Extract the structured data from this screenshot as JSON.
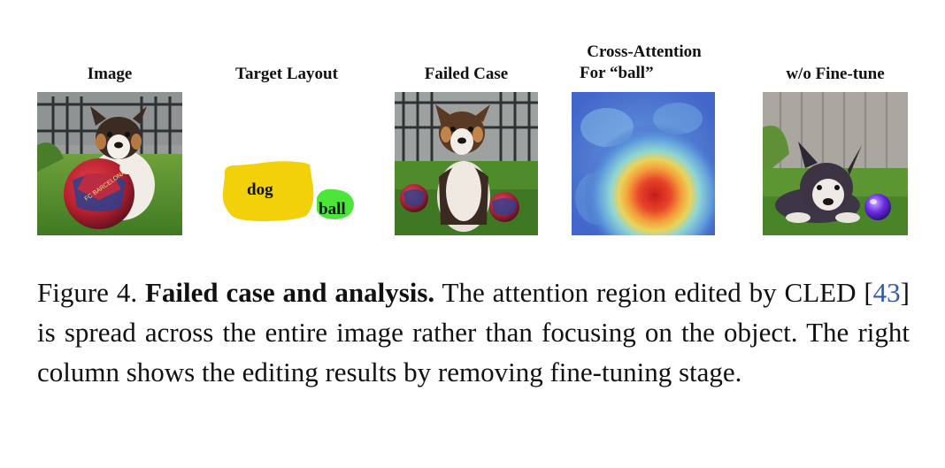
{
  "figure": {
    "panels": [
      {
        "title": "Image"
      },
      {
        "title": "Target Layout",
        "labels": [
          "dog",
          "ball"
        ]
      },
      {
        "title": "Failed Case"
      },
      {
        "title_line1": "Cross-Attention",
        "title_line2": "For “ball”"
      },
      {
        "title": "w/o Fine-tune"
      }
    ],
    "ball_print": "FC BARCELONA"
  },
  "caption": {
    "label": "Figure 4.",
    "bold": "Failed case and analysis.",
    "text_a": "The attention region edited by CLED [",
    "citation": "43",
    "text_b": "] is spread across the entire image rather than focusing on the object. The right column shows the editing results by removing fine-tuning stage."
  }
}
